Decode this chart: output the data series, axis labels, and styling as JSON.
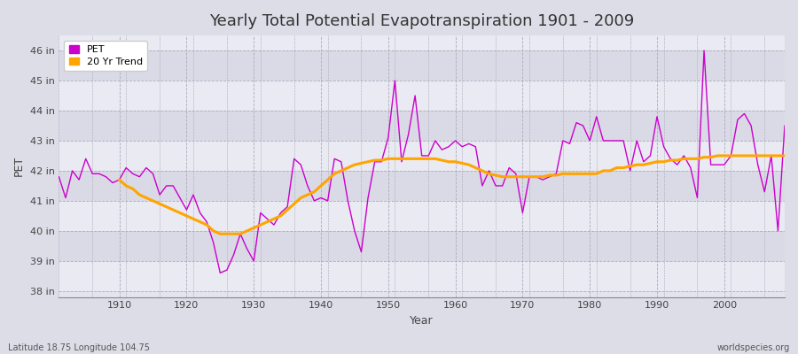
{
  "title": "Yearly Total Potential Evapotranspiration 1901 - 2009",
  "xlabel": "Year",
  "ylabel": "PET",
  "bottom_left_label": "Latitude 18.75 Longitude 104.75",
  "bottom_right_label": "worldspecies.org",
  "pet_color": "#CC00CC",
  "trend_color": "#FFA500",
  "background_color": "#DDDDE8",
  "plot_bg_color": "#E4E4EE",
  "band_color_light": "#EAEAF2",
  "band_color_dark": "#DADAE6",
  "ylim_min": 37.8,
  "ylim_max": 46.5,
  "xlim_min": 1901,
  "xlim_max": 2009,
  "ytick_labels": [
    "38 in",
    "39 in",
    "40 in",
    "41 in",
    "42 in",
    "43 in",
    "44 in",
    "45 in",
    "46 in"
  ],
  "ytick_values": [
    38,
    39,
    40,
    41,
    42,
    43,
    44,
    45,
    46
  ],
  "xtick_values": [
    1910,
    1920,
    1930,
    1940,
    1950,
    1960,
    1970,
    1980,
    1990,
    2000
  ],
  "pet_years": [
    1901,
    1902,
    1903,
    1904,
    1905,
    1906,
    1907,
    1908,
    1909,
    1910,
    1911,
    1912,
    1913,
    1914,
    1915,
    1916,
    1917,
    1918,
    1919,
    1920,
    1921,
    1922,
    1923,
    1924,
    1925,
    1926,
    1927,
    1928,
    1929,
    1930,
    1931,
    1932,
    1933,
    1934,
    1935,
    1936,
    1937,
    1938,
    1939,
    1940,
    1941,
    1942,
    1943,
    1944,
    1945,
    1946,
    1947,
    1948,
    1949,
    1950,
    1951,
    1952,
    1953,
    1954,
    1955,
    1956,
    1957,
    1958,
    1959,
    1960,
    1961,
    1962,
    1963,
    1964,
    1965,
    1966,
    1967,
    1968,
    1969,
    1970,
    1971,
    1972,
    1973,
    1974,
    1975,
    1976,
    1977,
    1978,
    1979,
    1980,
    1981,
    1982,
    1983,
    1984,
    1985,
    1986,
    1987,
    1988,
    1989,
    1990,
    1991,
    1992,
    1993,
    1994,
    1995,
    1996,
    1997,
    1998,
    1999,
    2000,
    2001,
    2002,
    2003,
    2004,
    2005,
    2006,
    2007,
    2008,
    2009
  ],
  "pet_values": [
    41.8,
    41.1,
    42.0,
    41.7,
    42.4,
    41.9,
    41.9,
    41.8,
    41.6,
    41.7,
    42.1,
    41.9,
    41.8,
    42.1,
    41.9,
    41.2,
    41.5,
    41.5,
    41.1,
    40.7,
    41.2,
    40.6,
    40.3,
    39.6,
    38.6,
    38.7,
    39.2,
    39.9,
    39.4,
    39.0,
    40.6,
    40.4,
    40.2,
    40.6,
    40.8,
    42.4,
    42.2,
    41.5,
    41.0,
    41.1,
    41.0,
    42.4,
    42.3,
    41.0,
    40.0,
    39.3,
    41.1,
    42.3,
    42.3,
    43.1,
    45.0,
    42.3,
    43.2,
    44.5,
    42.5,
    42.5,
    43.0,
    42.7,
    42.8,
    43.0,
    42.8,
    42.9,
    42.8,
    41.5,
    42.0,
    41.5,
    41.5,
    42.1,
    41.9,
    40.6,
    41.8,
    41.8,
    41.7,
    41.8,
    41.9,
    43.0,
    42.9,
    43.6,
    43.5,
    43.0,
    43.8,
    43.0,
    43.0,
    43.0,
    43.0,
    42.0,
    43.0,
    42.3,
    42.5,
    43.8,
    42.8,
    42.4,
    42.2,
    42.5,
    42.1,
    41.1,
    46.0,
    42.2,
    42.2,
    42.2,
    42.5,
    43.7,
    43.9,
    43.5,
    42.2,
    41.3,
    42.5,
    40.0,
    43.5
  ],
  "trend_years": [
    1910,
    1911,
    1912,
    1913,
    1914,
    1915,
    1916,
    1917,
    1918,
    1919,
    1920,
    1921,
    1922,
    1923,
    1924,
    1925,
    1926,
    1927,
    1928,
    1929,
    1930,
    1931,
    1932,
    1933,
    1934,
    1935,
    1936,
    1937,
    1938,
    1939,
    1940,
    1941,
    1942,
    1943,
    1944,
    1945,
    1946,
    1947,
    1948,
    1949,
    1950,
    1951,
    1952,
    1953,
    1954,
    1955,
    1956,
    1957,
    1958,
    1959,
    1960,
    1961,
    1962,
    1963,
    1964,
    1965,
    1966,
    1967,
    1968,
    1969,
    1970,
    1971,
    1972,
    1973,
    1974,
    1975,
    1976,
    1977,
    1978,
    1979,
    1980,
    1981,
    1982,
    1983,
    1984,
    1985,
    1986,
    1987,
    1988,
    1989,
    1990,
    1991,
    1992,
    1993,
    1994,
    1995,
    1996,
    1997,
    1998,
    1999,
    2000,
    2001,
    2002,
    2003,
    2004,
    2005,
    2006,
    2007,
    2008,
    2009
  ],
  "trend_values": [
    41.7,
    41.5,
    41.4,
    41.2,
    41.1,
    41.0,
    40.9,
    40.8,
    40.7,
    40.6,
    40.5,
    40.4,
    40.3,
    40.2,
    40.0,
    39.9,
    39.9,
    39.9,
    39.9,
    40.0,
    40.1,
    40.2,
    40.3,
    40.4,
    40.5,
    40.7,
    40.9,
    41.1,
    41.2,
    41.3,
    41.5,
    41.7,
    41.9,
    42.0,
    42.1,
    42.2,
    42.25,
    42.3,
    42.35,
    42.35,
    42.4,
    42.4,
    42.4,
    42.4,
    42.4,
    42.4,
    42.4,
    42.4,
    42.35,
    42.3,
    42.3,
    42.25,
    42.2,
    42.1,
    42.0,
    41.9,
    41.85,
    41.8,
    41.8,
    41.8,
    41.8,
    41.8,
    41.8,
    41.8,
    41.85,
    41.85,
    41.9,
    41.9,
    41.9,
    41.9,
    41.9,
    41.9,
    42.0,
    42.0,
    42.1,
    42.1,
    42.15,
    42.2,
    42.2,
    42.25,
    42.3,
    42.3,
    42.35,
    42.35,
    42.4,
    42.4,
    42.4,
    42.45,
    42.45,
    42.5,
    42.5,
    42.5,
    42.5,
    42.5,
    42.5,
    42.5,
    42.5,
    42.5,
    42.5,
    42.5
  ]
}
